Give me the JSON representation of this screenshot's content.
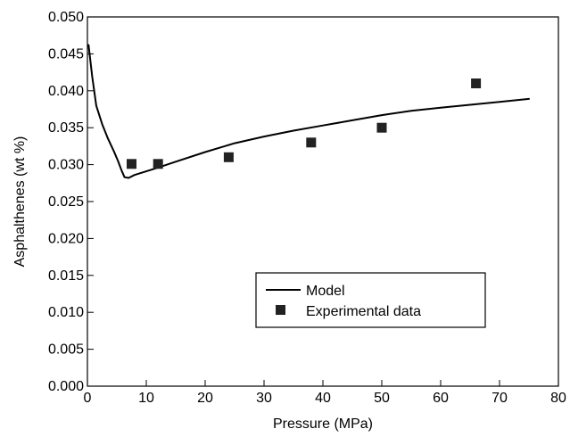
{
  "chart_data": {
    "type": "line",
    "title": "",
    "xlabel": "Pressure (MPa)",
    "ylabel": "Asphalthenes (wt %)",
    "xlim": [
      0,
      80
    ],
    "ylim": [
      0,
      0.05
    ],
    "x_ticks": [
      "0",
      "10",
      "20",
      "30",
      "40",
      "50",
      "60",
      "70",
      "80"
    ],
    "y_ticks": [
      "0.000",
      "0.005",
      "0.010",
      "0.015",
      "0.020",
      "0.025",
      "0.030",
      "0.035",
      "0.040",
      "0.045",
      "0.050"
    ],
    "grid": false,
    "legend_position": "lower-center",
    "series": [
      {
        "name": "Model",
        "kind": "line",
        "color": "#000000",
        "x": [
          0.2,
          0.8,
          1.5,
          2.5,
          3.5,
          4.5,
          5.2,
          5.8,
          6.3,
          7,
          8,
          10,
          12,
          15,
          20,
          25,
          30,
          35,
          40,
          45,
          50,
          55,
          60,
          65,
          70,
          75
        ],
        "y": [
          0.0462,
          0.042,
          0.038,
          0.0355,
          0.0335,
          0.0318,
          0.0305,
          0.0292,
          0.0283,
          0.0282,
          0.0286,
          0.0291,
          0.0296,
          0.0304,
          0.0317,
          0.0329,
          0.0338,
          0.0346,
          0.0353,
          0.036,
          0.0367,
          0.0373,
          0.0377,
          0.0381,
          0.0385,
          0.0389
        ]
      },
      {
        "name": "Experimental data",
        "kind": "scatter",
        "marker": "square",
        "color": "#222222",
        "x": [
          7.5,
          12,
          24,
          38,
          50,
          66
        ],
        "y": [
          0.0301,
          0.0301,
          0.031,
          0.033,
          0.035,
          0.041
        ]
      }
    ]
  }
}
